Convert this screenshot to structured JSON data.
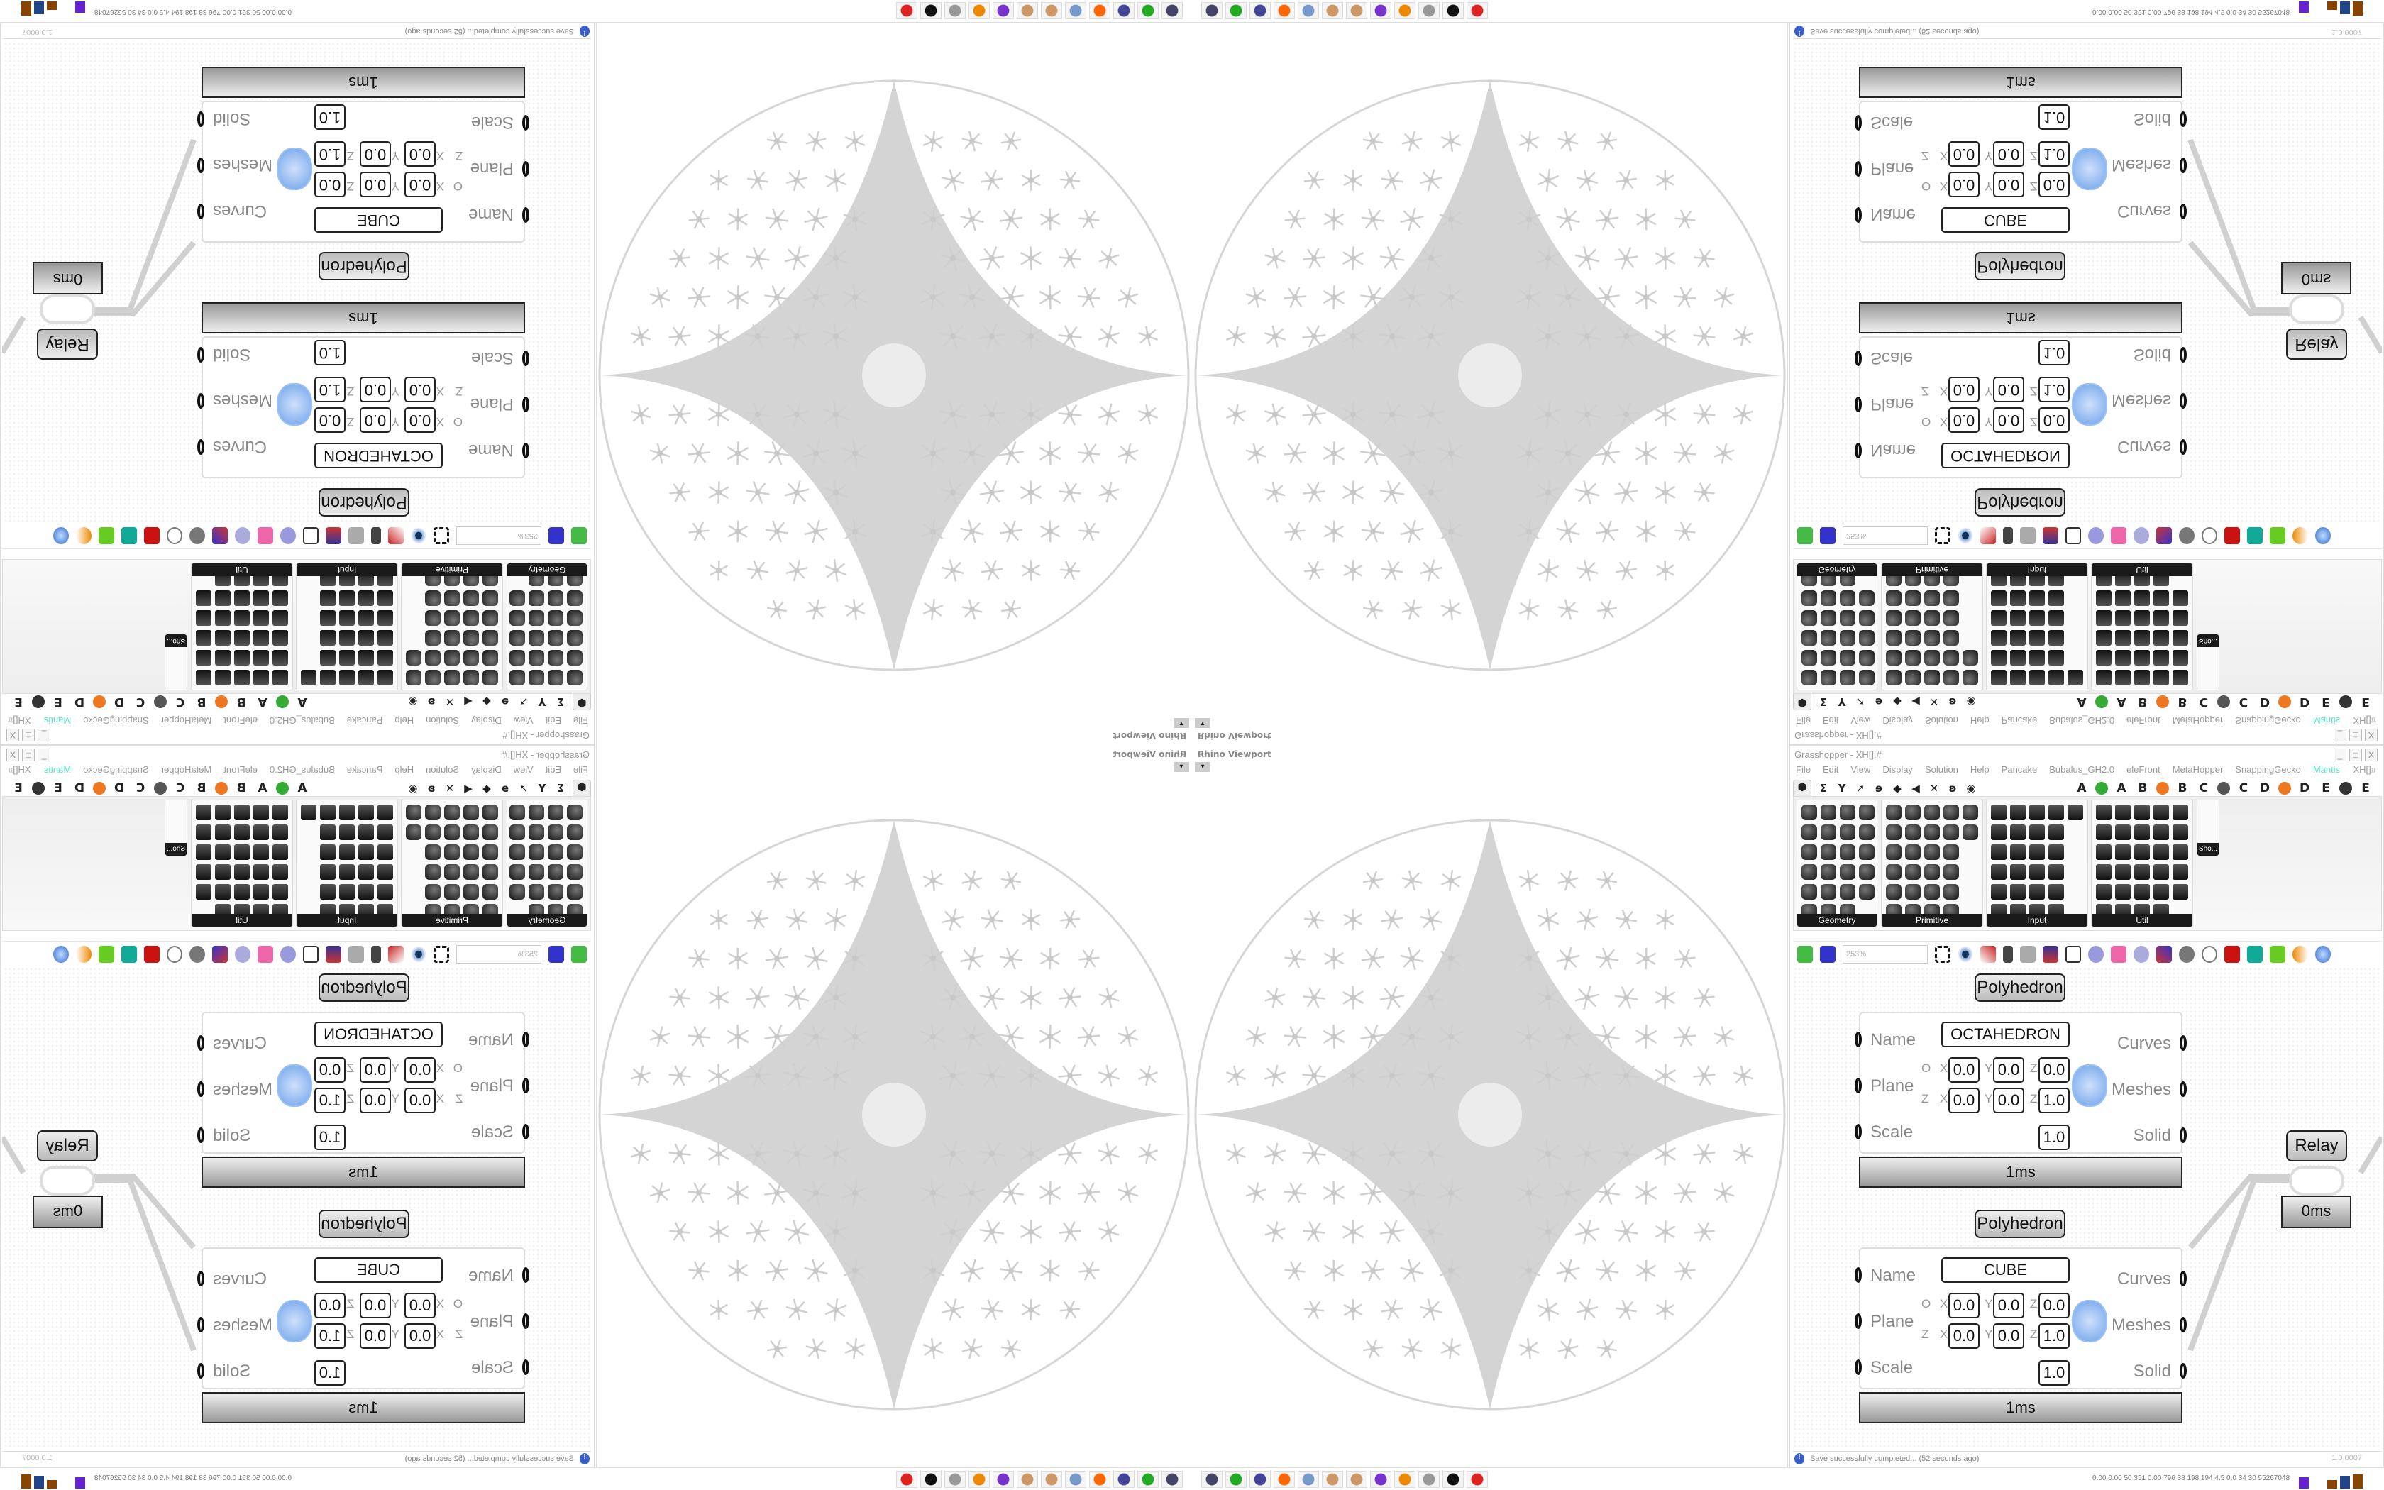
{
  "viewport": {
    "label": "Rhino Viewport",
    "menu_glyph": "▾"
  },
  "grasshopper": {
    "title": "Grasshopper - XH[].#",
    "window_controls": {
      "minimize": "_",
      "maximize": "□",
      "close": "X"
    },
    "menu": [
      "File",
      "Edit",
      "View",
      "Display",
      "Solution",
      "Help",
      "Pancake",
      "Bubalus_GH2.0",
      "eleFront",
      "MetaHopper",
      "SnappingGecko",
      "Mantis"
    ],
    "menu_right": "XH[]#",
    "tab_icons": [
      "⬢",
      "Σ",
      "Y",
      "➚",
      "ɘ",
      "◆",
      "◀",
      "✕",
      "ʚ",
      "◉"
    ],
    "tab_letters": [
      "A",
      "A",
      "B",
      "B",
      "C",
      "C",
      "D",
      "D",
      "E",
      "E"
    ],
    "palette_groups": [
      {
        "label": "Geometry"
      },
      {
        "label": "Primitive"
      },
      {
        "label": "Input"
      },
      {
        "label": "Util"
      }
    ],
    "shortcut_label": "Sho...",
    "zoom": "253%",
    "status": "Save successfully completed... (52 seconds ago)",
    "version": "1.0.0007"
  },
  "components": [
    {
      "title": "Polyhedron",
      "name": "OCTAHEDRON",
      "inputs": [
        "Name",
        "Plane",
        "Scale"
      ],
      "outputs": [
        "Curves",
        "Meshes",
        "Solid"
      ],
      "origin_label": "O",
      "zaxis_label": "Z",
      "axes": [
        "X",
        "Y",
        "Z"
      ],
      "origin": [
        "0.0",
        "0.0",
        "0.0"
      ],
      "zaxis": [
        "0.0",
        "0.0",
        "1.0"
      ],
      "scale": "1.0",
      "timing": "1ms"
    },
    {
      "title": "Polyhedron",
      "name": "CUBE",
      "inputs": [
        "Name",
        "Plane",
        "Scale"
      ],
      "outputs": [
        "Curves",
        "Meshes",
        "Solid"
      ],
      "origin_label": "O",
      "zaxis_label": "Z",
      "axes": [
        "X",
        "Y",
        "Z"
      ],
      "origin": [
        "0.0",
        "0.0",
        "0.0"
      ],
      "zaxis": [
        "0.0",
        "0.0",
        "1.0"
      ],
      "scale": "1.0",
      "timing": "1ms"
    }
  ],
  "relay": {
    "label": "Relay",
    "timing": "0ms"
  },
  "taskbar": {
    "apps": [
      "remote-desktop",
      "terminal",
      "floppy-64",
      "firefox",
      "calculator",
      "paint",
      "paint",
      "discord",
      "blender",
      "notepad",
      "rhino",
      "red-app"
    ],
    "app_colors": [
      "#446",
      "#2a2",
      "#449",
      "#f60",
      "#79c",
      "#c96",
      "#c96",
      "#73c",
      "#e80",
      "#999",
      "#111",
      "#d22"
    ],
    "stats": "0.00 0.00 50 351 0.00 796 38 198 194 4.5 0.0 34 30 55267048"
  }
}
